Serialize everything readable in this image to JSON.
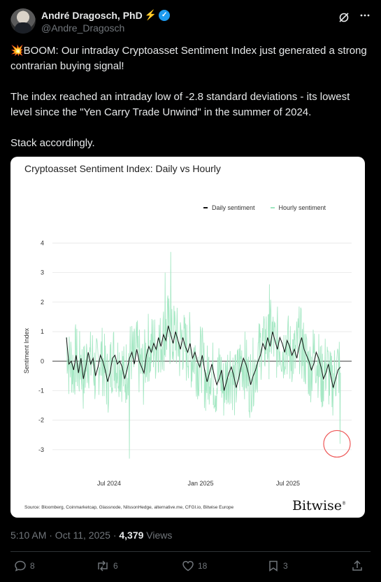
{
  "author": {
    "display_name": "André Dragosch, PhD",
    "name_emoji": "⚡",
    "verified_mark": "✓",
    "handle": "@Andre_Dragosch"
  },
  "header_icons": [
    "grok-icon",
    "more-icon"
  ],
  "tweet": {
    "line1": "💥BOOM: Our intraday Cryptoasset Sentiment Index just generated a strong contrarian buying signal!",
    "line2": "The index reached an intraday low of -2.8 standard deviations - its lowest level since the \"Yen Carry Trade Unwind\" in the summer of 2024.",
    "line3": "Stack accordingly."
  },
  "chart_data": {
    "type": "line",
    "title": "Cryptoasset Sentiment Index: Daily vs Hourly",
    "ylabel": "Sentiment Index",
    "xlabel": "",
    "ylim": [
      -3.5,
      4.2
    ],
    "yticks": [
      "4",
      "3",
      "2",
      "1",
      "0",
      "-1",
      "-2",
      "-3"
    ],
    "xticks": [
      "Jul 2024",
      "Jan 2025",
      "Jul 2025"
    ],
    "grid": "horizontal",
    "legend_position": "top-right",
    "series": [
      {
        "name": "Daily sentiment",
        "color": "#111111",
        "values": [
          0.8,
          -0.1,
          0.0,
          -0.3,
          0.2,
          -0.4,
          0.1,
          -0.6,
          -0.2,
          0.3,
          -0.1,
          0.1,
          -0.5,
          -0.2,
          0.2,
          0.0,
          -0.3,
          -0.7,
          -0.4,
          0.1,
          0.2,
          -0.1,
          0.0,
          -0.2,
          -0.6,
          -0.3,
          0.1,
          0.3,
          -0.1,
          0.4,
          0.0,
          -0.2,
          -0.4,
          0.2,
          0.5,
          0.3,
          0.6,
          0.4,
          0.8,
          0.5,
          0.9,
          0.7,
          1.2,
          0.9,
          0.6,
          1.0,
          0.7,
          0.4,
          0.8,
          0.5,
          0.3,
          0.6,
          0.1,
          0.3,
          0.0,
          -0.2,
          0.2,
          -0.3,
          -0.7,
          -0.4,
          -0.1,
          -0.5,
          -0.8,
          -0.6,
          -0.3,
          -1.0,
          -0.7,
          -0.4,
          -0.2,
          -0.5,
          -0.9,
          -0.6,
          -0.2,
          0.1,
          -0.1,
          -0.4,
          -0.8,
          -0.5,
          -0.3,
          0.0,
          0.2,
          0.6,
          0.4,
          0.8,
          0.5,
          1.0,
          0.7,
          0.4,
          0.8,
          0.6,
          0.3,
          0.7,
          0.5,
          0.2,
          0.4,
          0.1,
          0.5,
          0.8,
          0.4,
          0.2,
          0.0,
          -0.3,
          -0.1,
          0.3,
          0.1,
          -0.2,
          -0.6,
          -0.4,
          -0.1,
          -0.5,
          -0.9,
          -0.6,
          -0.3,
          -0.2
        ],
        "note_values": "approximate, read from chart"
      },
      {
        "name": "Hourly sentiment",
        "color": "#9de6bf",
        "min_value": -3.3,
        "max_value": 3.7,
        "latest_low": -2.8
      }
    ],
    "annotation": {
      "type": "circle",
      "value": -2.8,
      "color": "#e55"
    }
  },
  "chart_footer": {
    "source": "Source: Bloomberg, Coinmarketcap, Glassnode, NilssonHedge, alternative.me, CFGI.io, Bitwise Europe",
    "brand": "Bitwise",
    "brand_mark": "®"
  },
  "meta": {
    "time": "5:10 AM · Oct 11, 2025 · ",
    "views": "4,379",
    "views_label": " Views"
  },
  "actions": {
    "replies": "8",
    "reposts": "6",
    "likes": "18",
    "bookmarks": "3"
  }
}
